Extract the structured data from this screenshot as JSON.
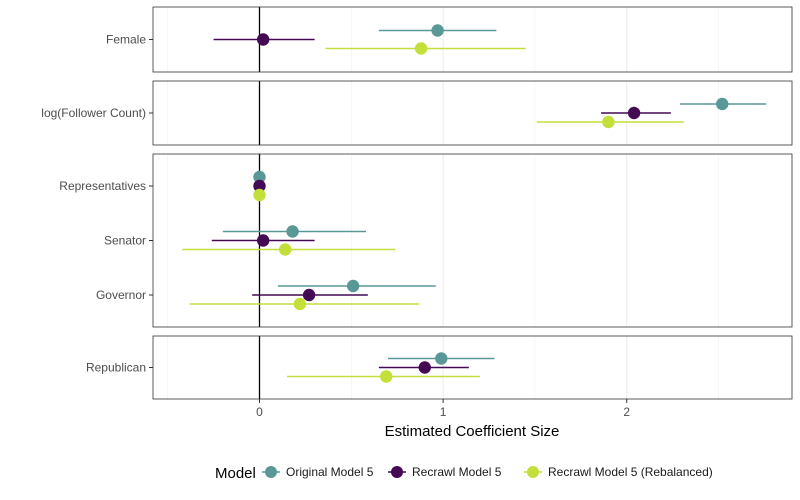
{
  "chart_data": {
    "type": "scatter",
    "subtype": "coefficient-plot-with-intervals",
    "xlabel": "Estimated Coefficient Size",
    "xlim": [
      -0.58,
      2.9
    ],
    "xticks": [
      0,
      1,
      2
    ],
    "reference_line_x": 0,
    "grid": true,
    "legend": {
      "title": "Model",
      "position": "bottom"
    },
    "series": [
      {
        "name": "Original Model 5",
        "color": "#5a9797"
      },
      {
        "name": "Recrawl Model 5",
        "color": "#440a54"
      },
      {
        "name": "Recrawl Model 5 (Rebalanced)",
        "color": "#c2df3a"
      }
    ],
    "panels": [
      {
        "rows": [
          {
            "label": "Female",
            "estimates": [
              {
                "series": "Original Model 5",
                "x": 0.97,
                "low": 0.65,
                "high": 1.29
              },
              {
                "series": "Recrawl Model 5",
                "x": 0.02,
                "low": -0.25,
                "high": 0.3
              },
              {
                "series": "Recrawl Model 5 (Rebalanced)",
                "x": 0.88,
                "low": 0.36,
                "high": 1.45
              }
            ]
          }
        ]
      },
      {
        "rows": [
          {
            "label": "log(Follower Count)",
            "estimates": [
              {
                "series": "Original Model 5",
                "x": 2.52,
                "low": 2.29,
                "high": 2.76
              },
              {
                "series": "Recrawl Model 5",
                "x": 2.04,
                "low": 1.86,
                "high": 2.24
              },
              {
                "series": "Recrawl Model 5 (Rebalanced)",
                "x": 1.9,
                "low": 1.51,
                "high": 2.31
              }
            ]
          }
        ]
      },
      {
        "rows": [
          {
            "label": "Representatives",
            "estimates": [
              {
                "series": "Original Model 5",
                "x": 0.0,
                "low": 0.0,
                "high": 0.0
              },
              {
                "series": "Recrawl Model 5",
                "x": 0.0,
                "low": 0.0,
                "high": 0.0
              },
              {
                "series": "Recrawl Model 5 (Rebalanced)",
                "x": 0.0,
                "low": 0.0,
                "high": 0.0
              }
            ]
          },
          {
            "label": "Senator",
            "estimates": [
              {
                "series": "Original Model 5",
                "x": 0.18,
                "low": -0.2,
                "high": 0.58
              },
              {
                "series": "Recrawl Model 5",
                "x": 0.02,
                "low": -0.26,
                "high": 0.3
              },
              {
                "series": "Recrawl Model 5 (Rebalanced)",
                "x": 0.14,
                "low": -0.42,
                "high": 0.74
              }
            ]
          },
          {
            "label": "Governor",
            "estimates": [
              {
                "series": "Original Model 5",
                "x": 0.51,
                "low": 0.1,
                "high": 0.96
              },
              {
                "series": "Recrawl Model 5",
                "x": 0.27,
                "low": -0.04,
                "high": 0.59
              },
              {
                "series": "Recrawl Model 5 (Rebalanced)",
                "x": 0.22,
                "low": -0.38,
                "high": 0.87
              }
            ]
          }
        ]
      },
      {
        "rows": [
          {
            "label": "Republican",
            "estimates": [
              {
                "series": "Original Model 5",
                "x": 0.99,
                "low": 0.7,
                "high": 1.28
              },
              {
                "series": "Recrawl Model 5",
                "x": 0.9,
                "low": 0.65,
                "high": 1.14
              },
              {
                "series": "Recrawl Model 5 (Rebalanced)",
                "x": 0.69,
                "low": 0.15,
                "high": 1.2
              }
            ]
          }
        ]
      }
    ]
  }
}
